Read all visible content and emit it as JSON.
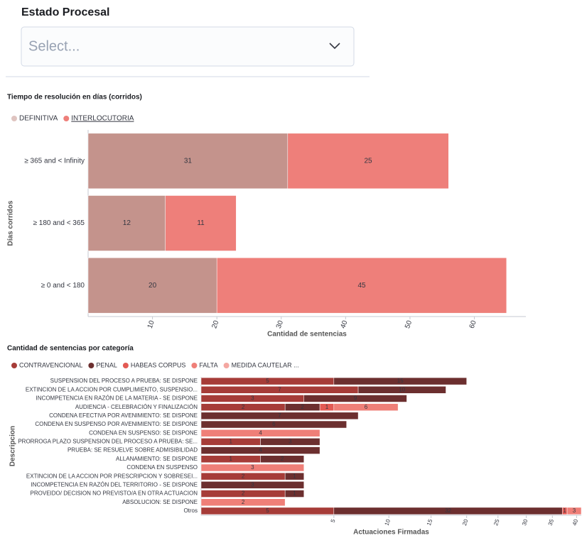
{
  "field": {
    "label": "Estado Procesal",
    "placeholder": "Select..."
  },
  "chart_data": [
    {
      "type": "bar",
      "orientation": "horizontal",
      "stacked": true,
      "title": "Tiempo de resolución en días (corridos)",
      "xlabel": "Cantidad de sentencias",
      "ylabel": "Días corridos",
      "categories": [
        "≥ 365 and < Infinity",
        "≥ 180 and < 365",
        "≥ 0 and < 180"
      ],
      "series": [
        {
          "name": "DEFINITIVA",
          "color": "#c4938c",
          "values": [
            31,
            12,
            20
          ]
        },
        {
          "name": "INTERLOCUTORIA",
          "color": "#ee7f7a",
          "values": [
            25,
            11,
            45
          ]
        }
      ],
      "xlim": [
        0,
        68
      ],
      "xticks": [
        10,
        20,
        30,
        40,
        50,
        60
      ],
      "xscale": "linear",
      "legend": "top-left"
    },
    {
      "type": "bar",
      "orientation": "horizontal",
      "stacked": true,
      "title": "Cantidad de sentencias por categoría",
      "xlabel": "Actuaciones Firmadas",
      "ylabel": "Descripcion",
      "categories": [
        "SUSPENSION DEL PROCESO A PRUEBA: SE DISPONE",
        "EXTINCION DE LA ACCION POR CUMPLIMIENTO, SUSPENSIO...",
        "INCOMPETENCIA EN RAZÓN DE LA MATERIA - SE DISPONE",
        "AUDIENCIA - CELEBRACIÓN Y FINALIZACIÓN",
        "CONDENA EFECTIVA POR AVENIMIENTO: SE DISPONE",
        "CONDENA EN SUSPENSO POR AVENIMIENTO: SE DISPONE",
        "CONDENA EN SUSPENSO: SE DISPONE",
        "PRORROGA PLAZO SUSPENSION DEL PROCESO A PRUEBA: SE...",
        "PRUEBA: SE RESUELVE SOBRE ADMISIBILIDAD",
        "ALLANAMIENTO: SE DISPONE",
        "CONDENA EN SUSPENSO",
        "EXTINCION DE LA ACCION POR PRESCRIPCION Y SOBRESEI...",
        "INCOMPETENCIA EN RAZÓN DEL TERRITORIO - SE DISPONE",
        "PROVEIDO/ DECISION NO PREVISTO/A EN OTRA ACTUACION",
        "ABSOLUCION: SE DISPONE",
        "Otros"
      ],
      "series": [
        {
          "name": "CONTRAVENCIONAL",
          "color": "#a63c38",
          "values": [
            5,
            7,
            3,
            2,
            null,
            null,
            null,
            1,
            null,
            1,
            null,
            2,
            null,
            2,
            null,
            5
          ]
        },
        {
          "name": "PENAL",
          "color": "#6c2f2f",
          "values": [
            15,
            10,
            9,
            2,
            7,
            6,
            null,
            3,
            4,
            2,
            null,
            1,
            3,
            1,
            null,
            32
          ]
        },
        {
          "name": "HABEAS CORPUS",
          "color": "#e35a54",
          "values": [
            null,
            null,
            null,
            1,
            null,
            null,
            null,
            null,
            null,
            null,
            null,
            null,
            null,
            null,
            null,
            1
          ]
        },
        {
          "name": "FALTA",
          "color": "#ef7f78",
          "values": [
            null,
            null,
            null,
            6,
            null,
            null,
            4,
            null,
            null,
            null,
            3,
            null,
            null,
            null,
            2,
            3
          ]
        },
        {
          "name": "MEDIDA CAUTELAR ...",
          "color": "#f4a7a1",
          "values": [
            null,
            null,
            null,
            null,
            null,
            null,
            null,
            null,
            null,
            null,
            null,
            null,
            null,
            null,
            null,
            null
          ]
        }
      ],
      "xlim": [
        0,
        41
      ],
      "xticks": [
        5,
        10,
        15,
        20,
        25,
        30,
        35,
        40
      ],
      "xscale": "sqrt",
      "legend": "top-left"
    }
  ]
}
